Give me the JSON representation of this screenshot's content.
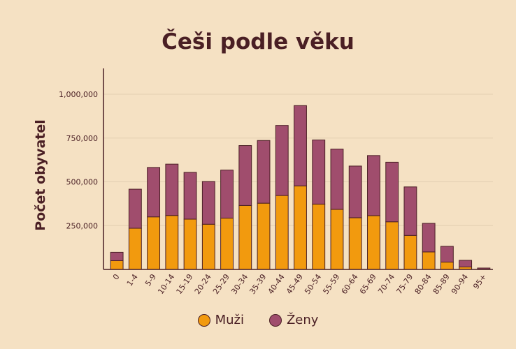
{
  "chart_data": {
    "type": "bar",
    "stacked": true,
    "title": "Češi podle věku",
    "xlabel": "",
    "ylabel": "Počet obyvatel",
    "ylim": [
      0,
      1000000
    ],
    "yticks": [
      250000,
      500000,
      750000,
      1000000
    ],
    "ytick_labels": [
      "250,000",
      "500,000",
      "750,000",
      "1,000,000"
    ],
    "grid": true,
    "legend_position": "bottom",
    "categories": [
      "0",
      "1-4",
      "5-9",
      "10-14",
      "15-19",
      "20-24",
      "25-29",
      "30-34",
      "35-39",
      "40-44",
      "45-49",
      "50-54",
      "55-59",
      "60-64",
      "65-69",
      "70-74",
      "75-79",
      "80-84",
      "85-89",
      "90-94",
      "95+"
    ],
    "series": [
      {
        "name": "Muži",
        "color": "#f29a0e",
        "values": [
          50000,
          235000,
          300000,
          308000,
          287000,
          258000,
          293000,
          365000,
          378000,
          422000,
          477000,
          373000,
          343000,
          295000,
          307000,
          272000,
          194000,
          100000,
          42000,
          14000,
          2000
        ]
      },
      {
        "name": "Ženy",
        "color": "#a04d6d",
        "values": [
          48000,
          223000,
          282000,
          293000,
          267000,
          244000,
          274000,
          342000,
          358000,
          400000,
          458000,
          366000,
          344000,
          295000,
          343000,
          340000,
          277000,
          163000,
          90000,
          38000,
          6000
        ]
      }
    ]
  }
}
